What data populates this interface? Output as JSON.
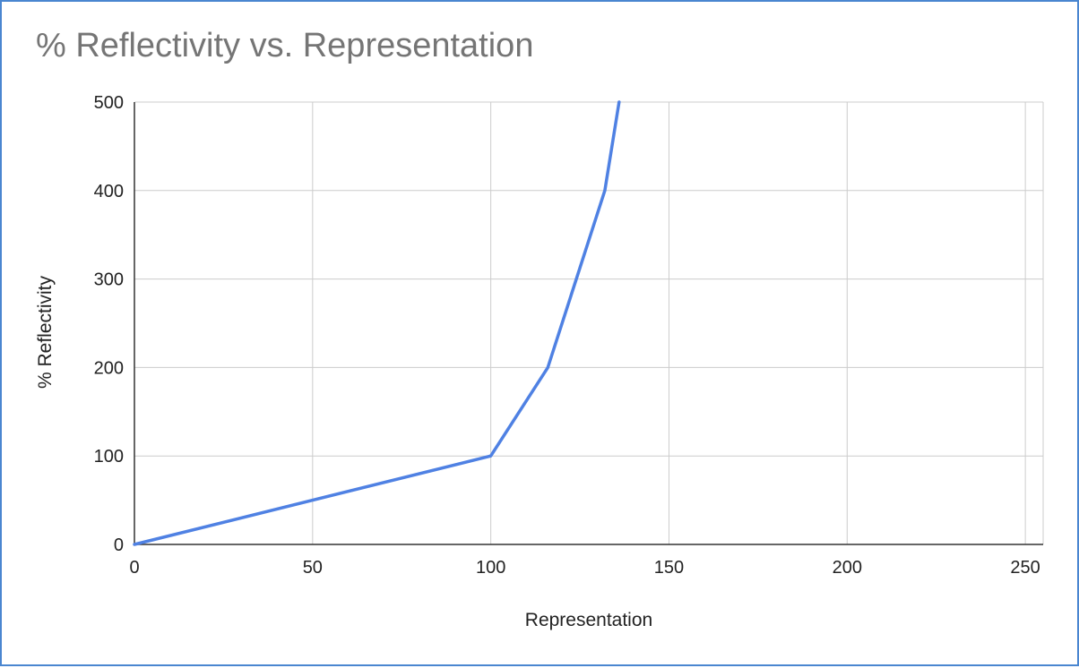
{
  "chart_data": {
    "type": "line",
    "title": "% Reflectivity vs. Representation",
    "xlabel": "Representation",
    "ylabel": "% Reflectivity",
    "xlim": [
      0,
      255
    ],
    "ylim": [
      0,
      500
    ],
    "x_ticks": [
      "0",
      "50",
      "100",
      "150",
      "200",
      "250"
    ],
    "y_ticks": [
      "0",
      "100",
      "200",
      "300",
      "400",
      "500"
    ],
    "grid": true,
    "series": [
      {
        "color": "#4f81e3",
        "x": [
          0,
          100,
          116,
          132,
          136
        ],
        "y": [
          0,
          100,
          200,
          400,
          500
        ]
      }
    ]
  }
}
